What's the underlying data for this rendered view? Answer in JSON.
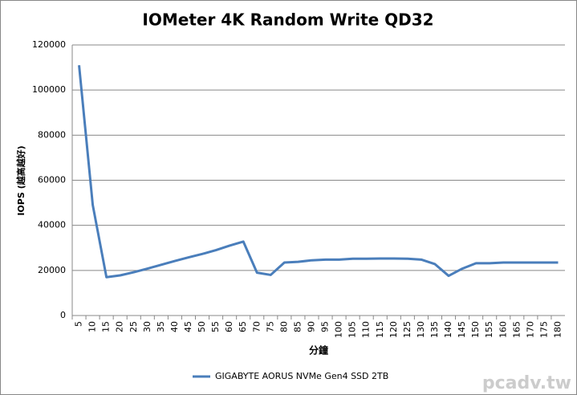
{
  "chart_data": {
    "type": "line",
    "title": "IOMeter 4K Random Write QD32",
    "x_label": "分鐘",
    "y_label": "IOPS (越高越好)",
    "categories": [
      "5",
      "10",
      "15",
      "20",
      "25",
      "30",
      "35",
      "40",
      "45",
      "50",
      "55",
      "60",
      "65",
      "70",
      "75",
      "80",
      "85",
      "90",
      "95",
      "100",
      "105",
      "110",
      "115",
      "120",
      "125",
      "130",
      "135",
      "140",
      "145",
      "150",
      "155",
      "160",
      "165",
      "170",
      "175",
      "180"
    ],
    "series": [
      {
        "name": "GIGABYTE AORUS NVMe Gen4 SSD 2TB",
        "color": "#4a7ebb",
        "values": [
          111000,
          49000,
          17000,
          17800,
          19200,
          20800,
          22500,
          24200,
          25800,
          27300,
          29000,
          31000,
          32800,
          19000,
          18000,
          23500,
          23800,
          24500,
          24800,
          24800,
          25200,
          25200,
          25300,
          25300,
          25200,
          24800,
          22800,
          17600,
          20800,
          23200,
          23200,
          23500,
          23500,
          23500,
          23500,
          23500
        ]
      }
    ],
    "ylim": [
      0,
      120000
    ],
    "yticks": [
      0,
      20000,
      40000,
      60000,
      80000,
      100000,
      120000
    ],
    "grid": true,
    "legend": "bottom",
    "watermark": "pcadv.tw"
  }
}
